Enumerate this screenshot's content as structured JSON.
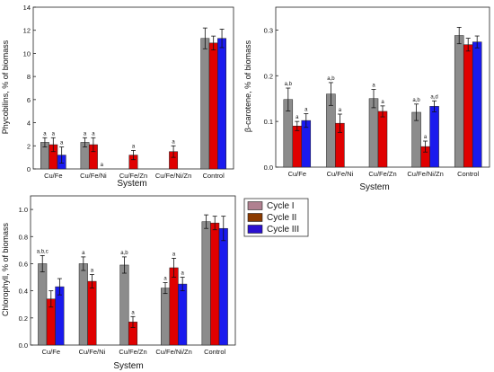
{
  "chart_data": [
    {
      "type": "bar",
      "ylabel": "Phycobilins, % of biomass",
      "xlabel": "System",
      "categories": [
        "Cu/Fe",
        "Cu/Fe/Ni",
        "Cu/Fe/Zn",
        "Cu/Fe/Ni/Zn",
        "Control"
      ],
      "ylim": [
        0,
        14
      ],
      "yticks": [
        0,
        2,
        4,
        6,
        8,
        10,
        12,
        14
      ],
      "grid": false,
      "series": [
        {
          "name": "Cycle I",
          "values": [
            2.3,
            2.3,
            null,
            null,
            11.3
          ],
          "errors": [
            0.4,
            0.4,
            0,
            0,
            0.9
          ]
        },
        {
          "name": "Cycle II",
          "values": [
            2.1,
            2.1,
            1.2,
            1.5,
            10.9
          ],
          "errors": [
            0.6,
            0.6,
            0.4,
            0.5,
            0.6
          ]
        },
        {
          "name": "Cycle III",
          "values": [
            1.2,
            null,
            null,
            null,
            11.3
          ],
          "errors": [
            0.7,
            0,
            0,
            0,
            0.8
          ]
        }
      ],
      "annotations": [
        [
          "a",
          "a",
          "a"
        ],
        [
          "a",
          "a",
          "a"
        ],
        [
          null,
          "a",
          null
        ],
        [
          null,
          "a",
          null
        ],
        [
          null,
          null,
          null
        ]
      ]
    },
    {
      "type": "bar",
      "ylabel": "β-carotene, % of biomass",
      "xlabel": "System",
      "categories": [
        "Cu/Fe",
        "Cu/Fe/Ni",
        "Cu/Fe/Zn",
        "Cu/Fe/Ni/Zn",
        "Control"
      ],
      "ylim": [
        0,
        0.35
      ],
      "yticks": [
        0.0,
        0.1,
        0.2,
        0.3
      ],
      "grid": false,
      "series": [
        {
          "name": "Cycle I",
          "values": [
            0.148,
            0.16,
            0.15,
            0.12,
            0.288
          ],
          "errors": [
            0.025,
            0.025,
            0.02,
            0.018,
            0.018
          ]
        },
        {
          "name": "Cycle II",
          "values": [
            0.09,
            0.096,
            0.122,
            0.045,
            0.268
          ],
          "errors": [
            0.01,
            0.02,
            0.012,
            0.012,
            0.014
          ]
        },
        {
          "name": "Cycle III",
          "values": [
            0.102,
            null,
            null,
            0.133,
            0.274
          ],
          "errors": [
            0.015,
            0,
            0,
            0.012,
            0.013
          ]
        }
      ],
      "annotations": [
        [
          "a,b",
          "a",
          "a"
        ],
        [
          "a,b",
          "a",
          null
        ],
        [
          "a",
          "a",
          null
        ],
        [
          "a,b",
          "a",
          "a,d"
        ],
        [
          null,
          null,
          null
        ]
      ]
    },
    {
      "type": "bar",
      "ylabel": "Chlorophyll, % of biomass",
      "xlabel": "System",
      "categories": [
        "Cu/Fe",
        "Cu/Fe/Ni",
        "Cu/Fe/Zn",
        "Cu/Fe/Ni/Zn",
        "Control"
      ],
      "ylim": [
        0,
        1.1
      ],
      "yticks": [
        0.0,
        0.2,
        0.4,
        0.6,
        0.8,
        1.0
      ],
      "grid": false,
      "series": [
        {
          "name": "Cycle I",
          "values": [
            0.6,
            0.6,
            0.59,
            0.42,
            0.91
          ],
          "errors": [
            0.06,
            0.05,
            0.06,
            0.04,
            0.05
          ]
        },
        {
          "name": "Cycle II",
          "values": [
            0.34,
            0.47,
            0.17,
            0.57,
            0.9
          ],
          "errors": [
            0.06,
            0.05,
            0.04,
            0.07,
            0.05
          ]
        },
        {
          "name": "Cycle III",
          "values": [
            0.43,
            null,
            null,
            0.45,
            0.86
          ],
          "errors": [
            0.06,
            0,
            0,
            0.05,
            0.09
          ]
        }
      ],
      "annotations": [
        [
          "a,b,c",
          null,
          null
        ],
        [
          "a",
          "a",
          null
        ],
        [
          "a,b",
          "a",
          null
        ],
        [
          "a",
          "a",
          "a"
        ],
        [
          null,
          null,
          null
        ]
      ]
    }
  ],
  "legend": {
    "placement": "between-panels-right",
    "entries": [
      "Cycle I",
      "Cycle II",
      "Cycle III"
    ]
  },
  "colors": {
    "Cycle I": "#8c8c8c",
    "Cycle II": "#e00000",
    "Cycle III": "#1a1aee",
    "legend_Cycle I": "#b08090",
    "legend_Cycle II": "#8b3a00",
    "legend_Cycle III": "#2a10d0"
  }
}
